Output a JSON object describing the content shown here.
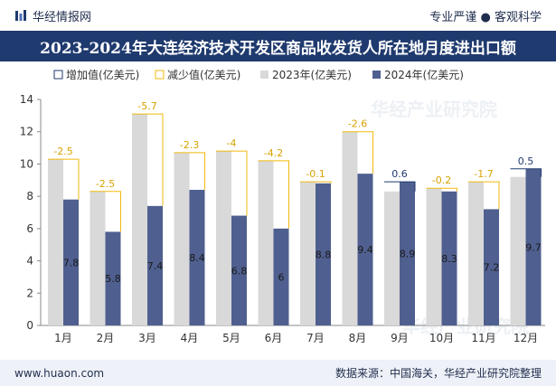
{
  "header": {
    "brand": "华经情报网",
    "slogan": "专业严谨 ● 客观科学"
  },
  "title": "2023-2024年大连经济技术开发区商品收发货人所在地月度进出口额",
  "footer": {
    "website": "www.huaon.com",
    "source": "数据来源：中国海关，华经产业研究院整理"
  },
  "watermark": "华经产业研究院",
  "chart_data": {
    "type": "bar",
    "categories": [
      "1月",
      "2月",
      "3月",
      "4月",
      "5月",
      "6月",
      "7月",
      "8月",
      "9月",
      "10月",
      "11月",
      "12月"
    ],
    "series": [
      {
        "name": "2023年(亿美元)",
        "values": [
          10.3,
          8.3,
          13.1,
          10.7,
          10.8,
          10.2,
          8.9,
          12.0,
          8.3,
          8.5,
          8.9,
          9.2
        ]
      },
      {
        "name": "2024年(亿美元)",
        "values": [
          7.8,
          5.8,
          7.4,
          8.4,
          6.8,
          6.0,
          8.8,
          9.4,
          8.9,
          8.3,
          7.2,
          9.7
        ]
      }
    ],
    "changes": [
      "-2.5",
      "-2.5",
      "-5.7",
      "-2.3",
      "-4",
      "-4.2",
      "-0.1",
      "-2.6",
      "0.6",
      "-0.2",
      "-1.7",
      "0.5"
    ],
    "legend": [
      {
        "label": "增加值(亿美元)",
        "kind": "increase"
      },
      {
        "label": "减少值(亿美元)",
        "kind": "decrease"
      },
      {
        "label": "2023年(亿美元)",
        "kind": "y2023"
      },
      {
        "label": "2024年(亿美元)",
        "kind": "y2024"
      }
    ],
    "ylim": [
      0,
      14
    ],
    "yticks": [
      0,
      2,
      4,
      6,
      8,
      10,
      12,
      14
    ],
    "grid": false,
    "legend_position": "top",
    "colors": {
      "y2023": "#d9d9d9",
      "y2024": "#4f5f8f",
      "increase": "#1f3a6e",
      "decrease": "#f2b90f"
    }
  }
}
